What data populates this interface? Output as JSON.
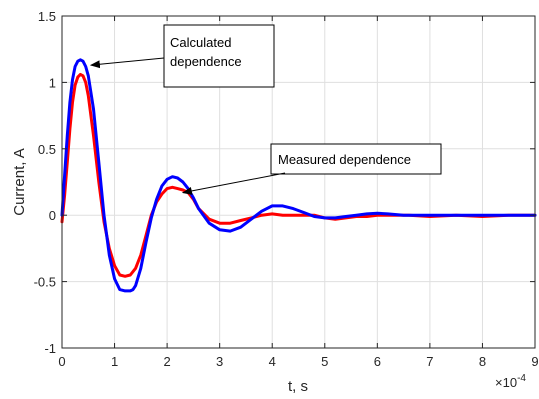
{
  "chart_data": {
    "type": "line",
    "title": "",
    "xlabel": "t, s",
    "ylabel": "Current, A",
    "x_multiplier": "×10",
    "x_exponent": "-4",
    "xlim": [
      0,
      9
    ],
    "ylim": [
      -1,
      1.5
    ],
    "xticks": [
      0,
      1,
      2,
      3,
      4,
      5,
      6,
      7,
      8,
      9
    ],
    "xtick_labels": [
      "0",
      "1",
      "2",
      "3",
      "4",
      "5",
      "6",
      "7",
      "8",
      "9"
    ],
    "yticks": [
      -1,
      -0.5,
      0,
      0.5,
      1,
      1.5
    ],
    "ytick_labels": [
      "-1",
      "-0.5",
      "0",
      "0.5",
      "1",
      "1.5"
    ],
    "grid": true,
    "legend": "none",
    "series": [
      {
        "color": "#ff0000",
        "x": [
          0,
          0.05,
          0.1,
          0.15,
          0.2,
          0.25,
          0.3,
          0.35,
          0.4,
          0.45,
          0.5,
          0.6,
          0.7,
          0.8,
          0.9,
          1.0,
          1.1,
          1.2,
          1.3,
          1.4,
          1.5,
          1.6,
          1.7,
          1.8,
          1.9,
          2.0,
          2.1,
          2.2,
          2.3,
          2.4,
          2.5,
          2.6,
          2.8,
          3.0,
          3.2,
          3.4,
          3.6,
          3.8,
          4.0,
          4.2,
          4.4,
          4.6,
          4.8,
          5.0,
          5.2,
          5.4,
          5.6,
          5.8,
          6.0,
          6.3,
          6.6,
          7.0,
          7.5,
          8.0,
          8.5,
          9.0
        ],
        "y": [
          -0.05,
          0.15,
          0.4,
          0.65,
          0.85,
          0.98,
          1.04,
          1.06,
          1.05,
          1.0,
          0.9,
          0.6,
          0.25,
          -0.05,
          -0.25,
          -0.38,
          -0.45,
          -0.46,
          -0.45,
          -0.4,
          -0.3,
          -0.15,
          0.0,
          0.1,
          0.16,
          0.2,
          0.21,
          0.2,
          0.19,
          0.17,
          0.12,
          0.05,
          -0.03,
          -0.06,
          -0.06,
          -0.04,
          -0.02,
          0.0,
          0.01,
          0.0,
          0.0,
          0.0,
          0.0,
          -0.02,
          -0.03,
          -0.02,
          -0.01,
          -0.01,
          0.0,
          0.0,
          0.0,
          -0.01,
          0.0,
          -0.01,
          0.0,
          0.0
        ]
      },
      {
        "color": "#0000ff",
        "x": [
          0,
          0.05,
          0.1,
          0.15,
          0.2,
          0.25,
          0.3,
          0.35,
          0.4,
          0.45,
          0.5,
          0.6,
          0.7,
          0.8,
          0.9,
          1.0,
          1.1,
          1.2,
          1.3,
          1.35,
          1.4,
          1.5,
          1.6,
          1.7,
          1.8,
          1.9,
          2.0,
          2.1,
          2.2,
          2.3,
          2.4,
          2.5,
          2.6,
          2.8,
          3.0,
          3.2,
          3.4,
          3.6,
          3.8,
          4.0,
          4.2,
          4.4,
          4.6,
          4.8,
          5.0,
          5.2,
          5.4,
          5.6,
          5.8,
          6.0,
          6.2,
          6.5,
          7.0,
          7.5,
          8.0,
          8.5,
          9.0
        ],
        "y": [
          0.0,
          0.3,
          0.6,
          0.85,
          1.02,
          1.12,
          1.16,
          1.17,
          1.16,
          1.12,
          1.05,
          0.8,
          0.4,
          0.0,
          -0.3,
          -0.48,
          -0.56,
          -0.57,
          -0.57,
          -0.56,
          -0.53,
          -0.4,
          -0.2,
          -0.02,
          0.12,
          0.22,
          0.27,
          0.29,
          0.28,
          0.25,
          0.2,
          0.13,
          0.05,
          -0.06,
          -0.11,
          -0.12,
          -0.09,
          -0.03,
          0.03,
          0.07,
          0.07,
          0.05,
          0.02,
          -0.01,
          -0.02,
          -0.02,
          -0.01,
          0.0,
          0.01,
          0.015,
          0.01,
          0.0,
          0.0,
          0.0,
          0.0,
          0.0,
          0.0
        ]
      }
    ],
    "annotations": [
      {
        "text_lines": [
          "Calculated",
          "dependence"
        ],
        "arrow_to": [
          0.55,
          1.13
        ]
      },
      {
        "text_lines": [
          "Measured dependence"
        ],
        "arrow_to": [
          2.3,
          0.17
        ]
      }
    ]
  }
}
